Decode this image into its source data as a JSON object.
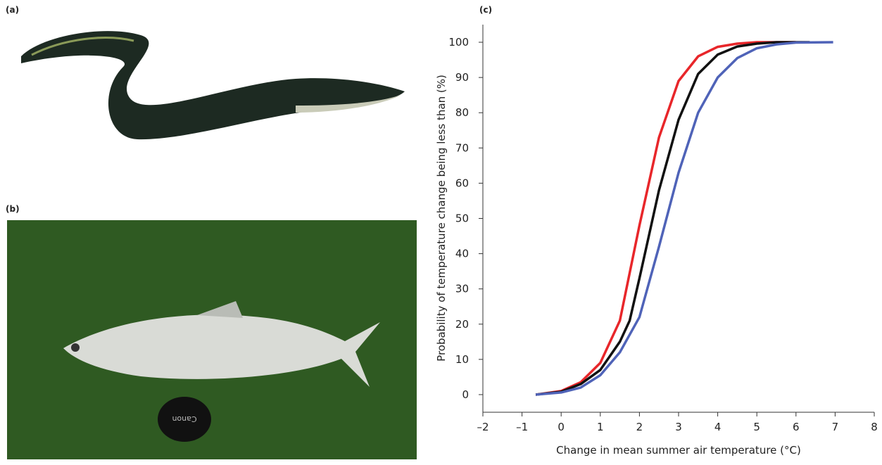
{
  "panels": {
    "a": "(a)",
    "b": "(b)"
  },
  "photo_text": "Canon",
  "chart_data": {
    "type": "line",
    "panel_label": "(c)",
    "x_label": "Change in mean summer air temperature (°C)",
    "y_label": "Probability of temperature change being less than (%)",
    "xlim": [
      -2,
      8
    ],
    "ylim": [
      -5,
      105
    ],
    "xticks": [
      {
        "value": -2,
        "label": "–2"
      },
      {
        "value": -1,
        "label": "–1"
      },
      0,
      1,
      2,
      3,
      4,
      5,
      6,
      7,
      8
    ],
    "yticks": [
      0,
      10,
      20,
      30,
      40,
      50,
      60,
      70,
      80,
      90,
      100
    ],
    "series": [
      {
        "color": "#e8262a",
        "x": [
          -0.65,
          0,
          0.5,
          1,
          1.5,
          2,
          2.5,
          3,
          3.5,
          4,
          4.5,
          5,
          6
        ],
        "values": [
          0,
          1,
          3.5,
          9,
          21,
          48,
          73,
          89,
          96,
          98.7,
          99.6,
          100,
          100
        ]
      },
      {
        "color": "#111111",
        "x": [
          -0.65,
          0,
          0.5,
          1,
          1.5,
          1.75,
          2,
          2.5,
          3,
          3.5,
          4,
          4.5,
          5,
          5.5,
          6.35
        ],
        "values": [
          0,
          0.8,
          3,
          7,
          15,
          21,
          33,
          58,
          78,
          91,
          96.5,
          98.8,
          99.6,
          100,
          100
        ]
      },
      {
        "color": "#4f63b8",
        "x": [
          -0.65,
          0,
          0.5,
          1,
          1.5,
          2,
          2.5,
          3,
          3.5,
          4,
          4.5,
          5,
          5.5,
          6,
          6.95
        ],
        "values": [
          0,
          0.6,
          2,
          5.5,
          12,
          22,
          42,
          63,
          80,
          90,
          95.5,
          98.3,
          99.4,
          99.9,
          100
        ]
      }
    ]
  }
}
